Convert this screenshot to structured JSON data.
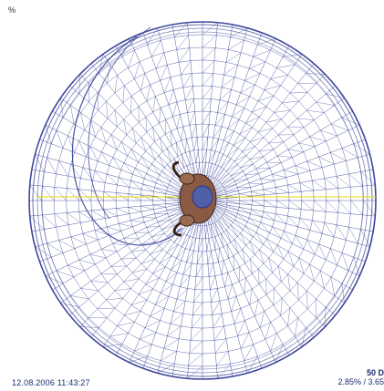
{
  "viewport": {
    "corner_mark": "%",
    "timestamp": "12.08.2006 11:43:27",
    "scale_label": "50 D",
    "stats_text": "2.85% / 3.65"
  },
  "colors": {
    "mesh_line": "#2a3590",
    "axis_line": "#e0d800",
    "background": "#ffffff",
    "figure_skin": "#8a5a44"
  },
  "icons": {
    "figure": "human-figure-icon"
  }
}
